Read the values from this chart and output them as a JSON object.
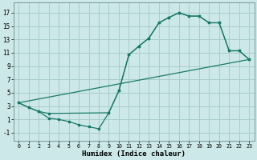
{
  "bg_color": "#cce8e8",
  "grid_color": "#aacccc",
  "line_color": "#1a7a6a",
  "xlabel": "Humidex (Indice chaleur)",
  "xlim": [
    -0.5,
    23.5
  ],
  "ylim": [
    -2.2,
    18.5
  ],
  "xticks": [
    0,
    1,
    2,
    3,
    4,
    5,
    6,
    7,
    8,
    9,
    10,
    11,
    12,
    13,
    14,
    15,
    16,
    17,
    18,
    19,
    20,
    21,
    22,
    23
  ],
  "yticks": [
    -1,
    1,
    3,
    5,
    7,
    9,
    11,
    13,
    15,
    17
  ],
  "line1_x": [
    0,
    23
  ],
  "line1_y": [
    3.5,
    10.0
  ],
  "line2_x": [
    0,
    1,
    2,
    3,
    4,
    5,
    6,
    7,
    8,
    9,
    10,
    11,
    12,
    13,
    14,
    15,
    16,
    17,
    18,
    19,
    20,
    21,
    22,
    23
  ],
  "line2_y": [
    3.5,
    2.8,
    2.2,
    1.2,
    1.0,
    0.7,
    0.2,
    -0.1,
    -0.4,
    2.0,
    5.3,
    10.7,
    12.0,
    13.2,
    15.5,
    16.3,
    17.0,
    16.5,
    16.5,
    15.5,
    15.5,
    11.3,
    11.3,
    10.0
  ],
  "line3_x": [
    0,
    1,
    2,
    3,
    9,
    10,
    11,
    12,
    13,
    14,
    15,
    16,
    17,
    18,
    19,
    20,
    21,
    22,
    23
  ],
  "line3_y": [
    3.5,
    2.8,
    2.2,
    1.9,
    2.0,
    5.3,
    10.7,
    12.0,
    13.2,
    15.5,
    16.3,
    17.0,
    16.5,
    16.5,
    15.5,
    15.5,
    11.3,
    11.3,
    10.0
  ]
}
